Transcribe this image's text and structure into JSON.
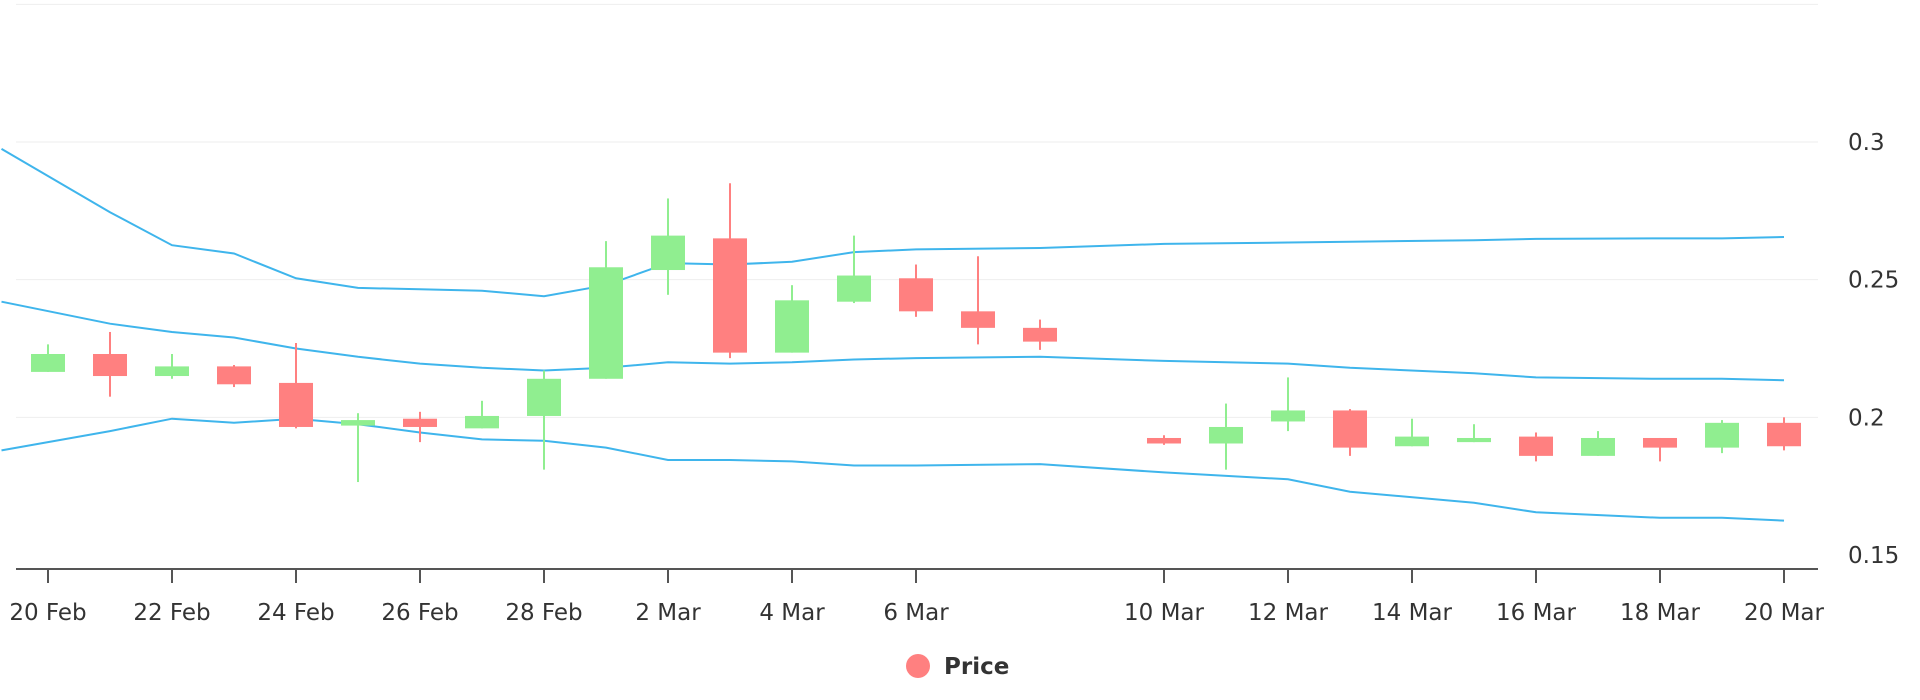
{
  "chart_data": {
    "type": "candlestick",
    "legend": {
      "label": "Price",
      "position": "bottom-center",
      "marker_color": "#ff8080"
    },
    "x_ticks": [
      "20 Feb",
      "22 Feb",
      "24 Feb",
      "26 Feb",
      "28 Feb",
      "2 Mar",
      "4 Mar",
      "6 Mar",
      "10 Mar",
      "12 Mar",
      "14 Mar",
      "16 Mar",
      "18 Mar",
      "20 Mar"
    ],
    "y_ticks": [
      "0.15",
      "0.2",
      "0.25",
      "0.3"
    ],
    "y_range": [
      0.15,
      0.35
    ],
    "y_axis_side": "right",
    "grid": true,
    "colors": {
      "up": "#90ee90",
      "down": "#ff8080",
      "bands": "#3fb5ec",
      "axis": "#555555",
      "grid": "#eeeeee"
    },
    "candles": [
      {
        "date": "20 Feb",
        "open": 0.2165,
        "high": 0.2265,
        "low": 0.2165,
        "close": 0.223
      },
      {
        "date": "21 Feb",
        "open": 0.223,
        "high": 0.231,
        "low": 0.2075,
        "close": 0.215
      },
      {
        "date": "22 Feb",
        "open": 0.215,
        "high": 0.223,
        "low": 0.214,
        "close": 0.2185
      },
      {
        "date": "23 Feb",
        "open": 0.2185,
        "high": 0.219,
        "low": 0.211,
        "close": 0.212
      },
      {
        "date": "24 Feb",
        "open": 0.2125,
        "high": 0.227,
        "low": 0.196,
        "close": 0.1965
      },
      {
        "date": "25 Feb",
        "open": 0.197,
        "high": 0.2015,
        "low": 0.1765,
        "close": 0.199
      },
      {
        "date": "26 Feb",
        "open": 0.1995,
        "high": 0.202,
        "low": 0.191,
        "close": 0.1965
      },
      {
        "date": "27 Feb",
        "open": 0.196,
        "high": 0.206,
        "low": 0.196,
        "close": 0.2005
      },
      {
        "date": "28 Feb",
        "open": 0.2005,
        "high": 0.217,
        "low": 0.181,
        "close": 0.214
      },
      {
        "date": "1 Mar",
        "open": 0.214,
        "high": 0.264,
        "low": 0.214,
        "close": 0.2545
      },
      {
        "date": "2 Mar",
        "open": 0.2535,
        "high": 0.2795,
        "low": 0.2445,
        "close": 0.266
      },
      {
        "date": "3 Mar",
        "open": 0.265,
        "high": 0.285,
        "low": 0.2215,
        "close": 0.2235
      },
      {
        "date": "4 Mar",
        "open": 0.2235,
        "high": 0.248,
        "low": 0.2235,
        "close": 0.2425
      },
      {
        "date": "5 Mar",
        "open": 0.242,
        "high": 0.266,
        "low": 0.2415,
        "close": 0.2515
      },
      {
        "date": "6 Mar",
        "open": 0.2505,
        "high": 0.2555,
        "low": 0.2365,
        "close": 0.2385
      },
      {
        "date": "7 Mar",
        "open": 0.2385,
        "high": 0.2585,
        "low": 0.2265,
        "close": 0.2325
      },
      {
        "date": "8 Mar",
        "open": 0.2325,
        "high": 0.2355,
        "low": 0.2245,
        "close": 0.2275
      },
      {
        "date": "10 Mar",
        "open": 0.1925,
        "high": 0.1935,
        "low": 0.19,
        "close": 0.1905
      },
      {
        "date": "11 Mar",
        "open": 0.1905,
        "high": 0.205,
        "low": 0.181,
        "close": 0.1965
      },
      {
        "date": "12 Mar",
        "open": 0.1985,
        "high": 0.2145,
        "low": 0.195,
        "close": 0.2025
      },
      {
        "date": "13 Mar",
        "open": 0.2025,
        "high": 0.203,
        "low": 0.186,
        "close": 0.189
      },
      {
        "date": "14 Mar",
        "open": 0.1895,
        "high": 0.1995,
        "low": 0.1895,
        "close": 0.193
      },
      {
        "date": "15 Mar",
        "open": 0.191,
        "high": 0.1975,
        "low": 0.191,
        "close": 0.1925
      },
      {
        "date": "16 Mar",
        "open": 0.193,
        "high": 0.1945,
        "low": 0.184,
        "close": 0.186
      },
      {
        "date": "17 Mar",
        "open": 0.186,
        "high": 0.195,
        "low": 0.186,
        "close": 0.1925
      },
      {
        "date": "18 Mar",
        "open": 0.1925,
        "high": 0.1925,
        "low": 0.184,
        "close": 0.189
      },
      {
        "date": "19 Mar",
        "open": 0.189,
        "high": 0.199,
        "low": 0.187,
        "close": 0.198
      },
      {
        "date": "20 Mar",
        "open": 0.198,
        "high": 0.2,
        "low": 0.188,
        "close": 0.1895
      }
    ],
    "bands": {
      "dates": [
        "19.25 Feb",
        "21 Feb",
        "22 Feb",
        "23 Feb",
        "24 Feb",
        "25 Feb",
        "26 Feb",
        "27 Feb",
        "28 Feb",
        "1 Mar",
        "2 Mar",
        "3 Mar",
        "4 Mar",
        "5 Mar",
        "6 Mar",
        "8 Mar",
        "10 Mar",
        "12 Mar",
        "13 Mar",
        "15 Mar",
        "16 Mar",
        "18 Mar",
        "19 Mar",
        "20 Mar"
      ],
      "upper": [
        0.2975,
        0.2745,
        0.2625,
        0.2595,
        0.2505,
        0.247,
        0.2465,
        0.246,
        0.244,
        0.248,
        0.256,
        0.2555,
        0.2565,
        0.26,
        0.261,
        0.2615,
        0.263,
        0.2635,
        0.2638,
        0.2643,
        0.2648,
        0.265,
        0.265,
        0.2655
      ],
      "middle": [
        0.242,
        0.234,
        0.231,
        0.229,
        0.225,
        0.222,
        0.2195,
        0.218,
        0.217,
        0.218,
        0.22,
        0.2195,
        0.22,
        0.221,
        0.2215,
        0.222,
        0.2205,
        0.2195,
        0.218,
        0.216,
        0.2145,
        0.214,
        0.214,
        0.2135
      ],
      "lower": [
        0.188,
        0.195,
        0.1995,
        0.198,
        0.1995,
        0.1975,
        0.1945,
        0.192,
        0.1915,
        0.189,
        0.1845,
        0.1845,
        0.184,
        0.1825,
        0.1825,
        0.183,
        0.18,
        0.1775,
        0.173,
        0.169,
        0.1655,
        0.1635,
        0.1635,
        0.1625
      ]
    }
  }
}
